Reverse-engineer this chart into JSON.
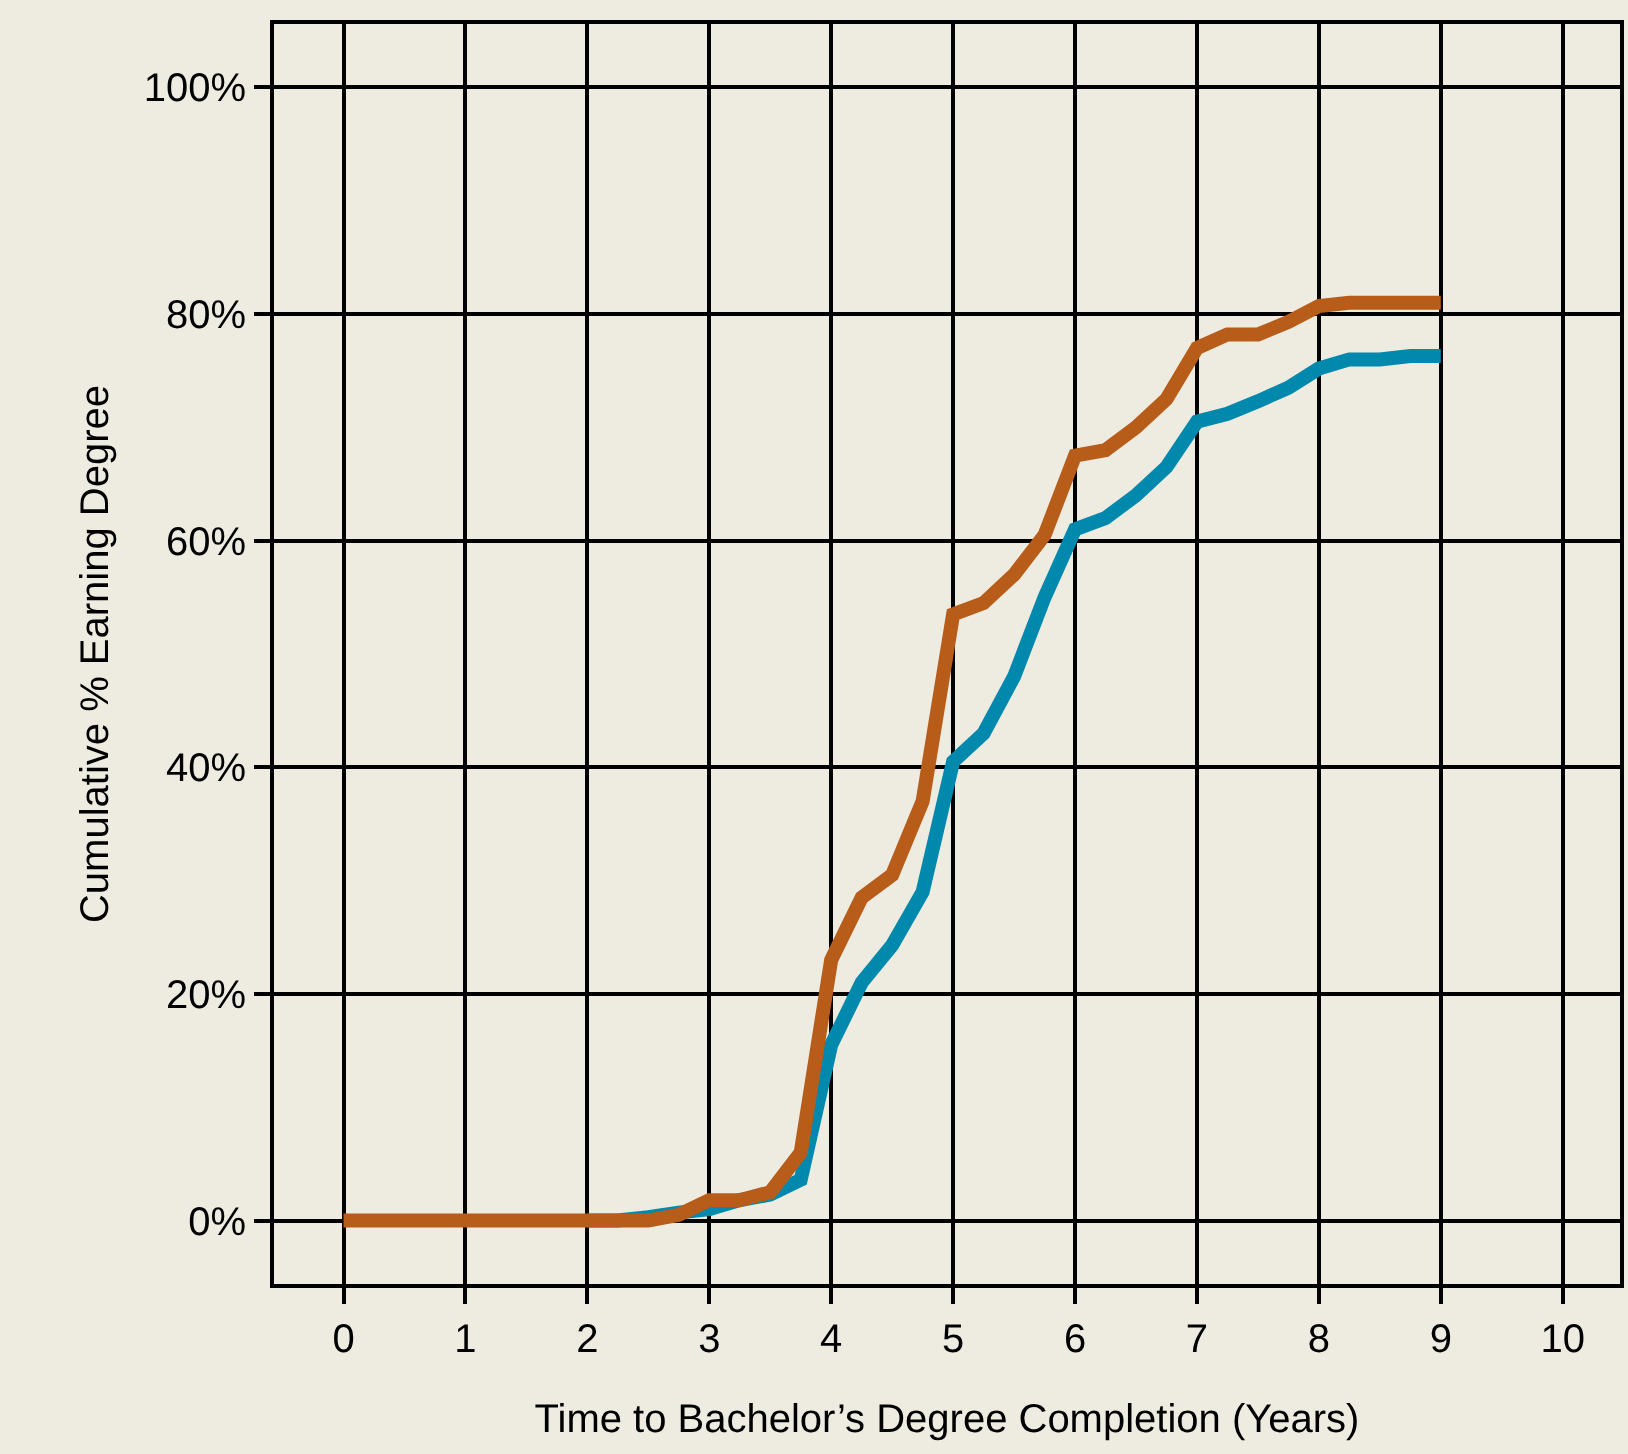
{
  "chart_data": {
    "type": "line",
    "xlabel": "Time to Bachelor’s Degree Completion (Years)",
    "ylabel": "Cumulative % Earning Degree",
    "x": [
      0,
      0.25,
      0.5,
      0.75,
      1,
      1.25,
      1.5,
      1.75,
      2,
      2.25,
      2.5,
      2.75,
      3,
      3.25,
      3.5,
      3.75,
      4,
      4.25,
      4.5,
      4.75,
      5,
      5.25,
      5.5,
      5.75,
      6,
      6.25,
      6.5,
      6.75,
      7,
      7.25,
      7.5,
      7.75,
      8,
      8.25,
      8.5,
      8.75,
      9
    ],
    "series": [
      {
        "color": "#0089ad",
        "values": [
          null,
          null,
          null,
          null,
          null,
          null,
          null,
          null,
          0,
          0,
          0.3,
          0.7,
          1.0,
          1.8,
          2.3,
          3.6,
          15.5,
          21,
          24.3,
          29,
          40.5,
          43,
          48,
          55,
          61,
          62,
          64,
          66.5,
          70.5,
          71.2,
          72.3,
          73.5,
          75.2,
          76,
          76,
          76.3,
          76.3
        ]
      },
      {
        "color": "#b85c1a",
        "values": [
          0,
          0,
          0,
          0,
          0,
          0,
          0,
          0,
          0,
          0,
          0,
          0.5,
          1.8,
          1.8,
          2.5,
          6,
          23,
          28.5,
          30.5,
          37,
          53.5,
          54.5,
          57,
          60.5,
          67.5,
          68,
          70,
          72.5,
          77,
          78.2,
          78.2,
          79.3,
          80.7,
          81,
          81,
          81,
          81
        ]
      }
    ],
    "xlim": [
      -0.57,
      10.47
    ],
    "ylim": [
      -5.6,
      105.6
    ],
    "xticks": [
      0,
      1,
      2,
      3,
      4,
      5,
      6,
      7,
      8,
      9,
      10
    ],
    "yticks": [
      {
        "value": 0,
        "label": "0%"
      },
      {
        "value": 20,
        "label": "20%"
      },
      {
        "value": 40,
        "label": "40%"
      },
      {
        "value": 60,
        "label": "60%"
      },
      {
        "value": 80,
        "label": "80%"
      },
      {
        "value": 100,
        "label": "100%"
      }
    ],
    "grid": true,
    "marker": "none",
    "line_style": "solid"
  }
}
